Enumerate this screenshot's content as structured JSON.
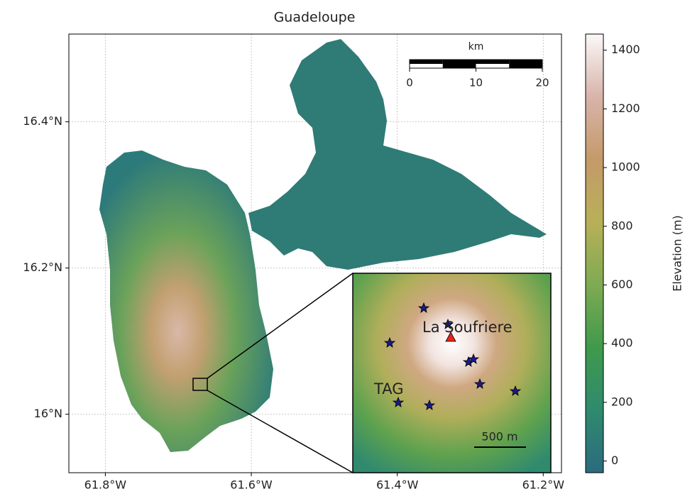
{
  "chart_data": {
    "type": "map",
    "title": "Guadeloupe",
    "xlim": [
      -61.85,
      -61.175
    ],
    "ylim": [
      15.92,
      16.52
    ],
    "xticks": [
      {
        "value": -61.8,
        "label": "61.8°W"
      },
      {
        "value": -61.6,
        "label": "61.6°W"
      },
      {
        "value": -61.4,
        "label": "61.4°W"
      },
      {
        "value": -61.2,
        "label": "61.2°W"
      }
    ],
    "yticks": [
      {
        "value": 16,
        "label": "16°N"
      },
      {
        "value": 16.2,
        "label": "16.2°N"
      },
      {
        "value": 16.4,
        "label": "16.4°N"
      }
    ],
    "grid": true,
    "colorbar": {
      "label": "Elevation (m)",
      "ylim": [
        -40,
        1455
      ],
      "yticks": [
        0,
        200,
        400,
        600,
        800,
        1000,
        1200,
        1400
      ],
      "colors": [
        "#2c6b7e",
        "#2f8a6e",
        "#3f9a4c",
        "#7faa52",
        "#b8b058",
        "#c49a6a",
        "#d8b4aa",
        "#fbf8f8"
      ]
    },
    "scale_bar": {
      "label": "km",
      "xlim": [
        0,
        20
      ],
      "xticks": [
        0,
        10,
        20
      ]
    },
    "inset": {
      "peak_label": "La Soufriere",
      "station_label": "TAG",
      "scale_label": "500 m"
    }
  }
}
